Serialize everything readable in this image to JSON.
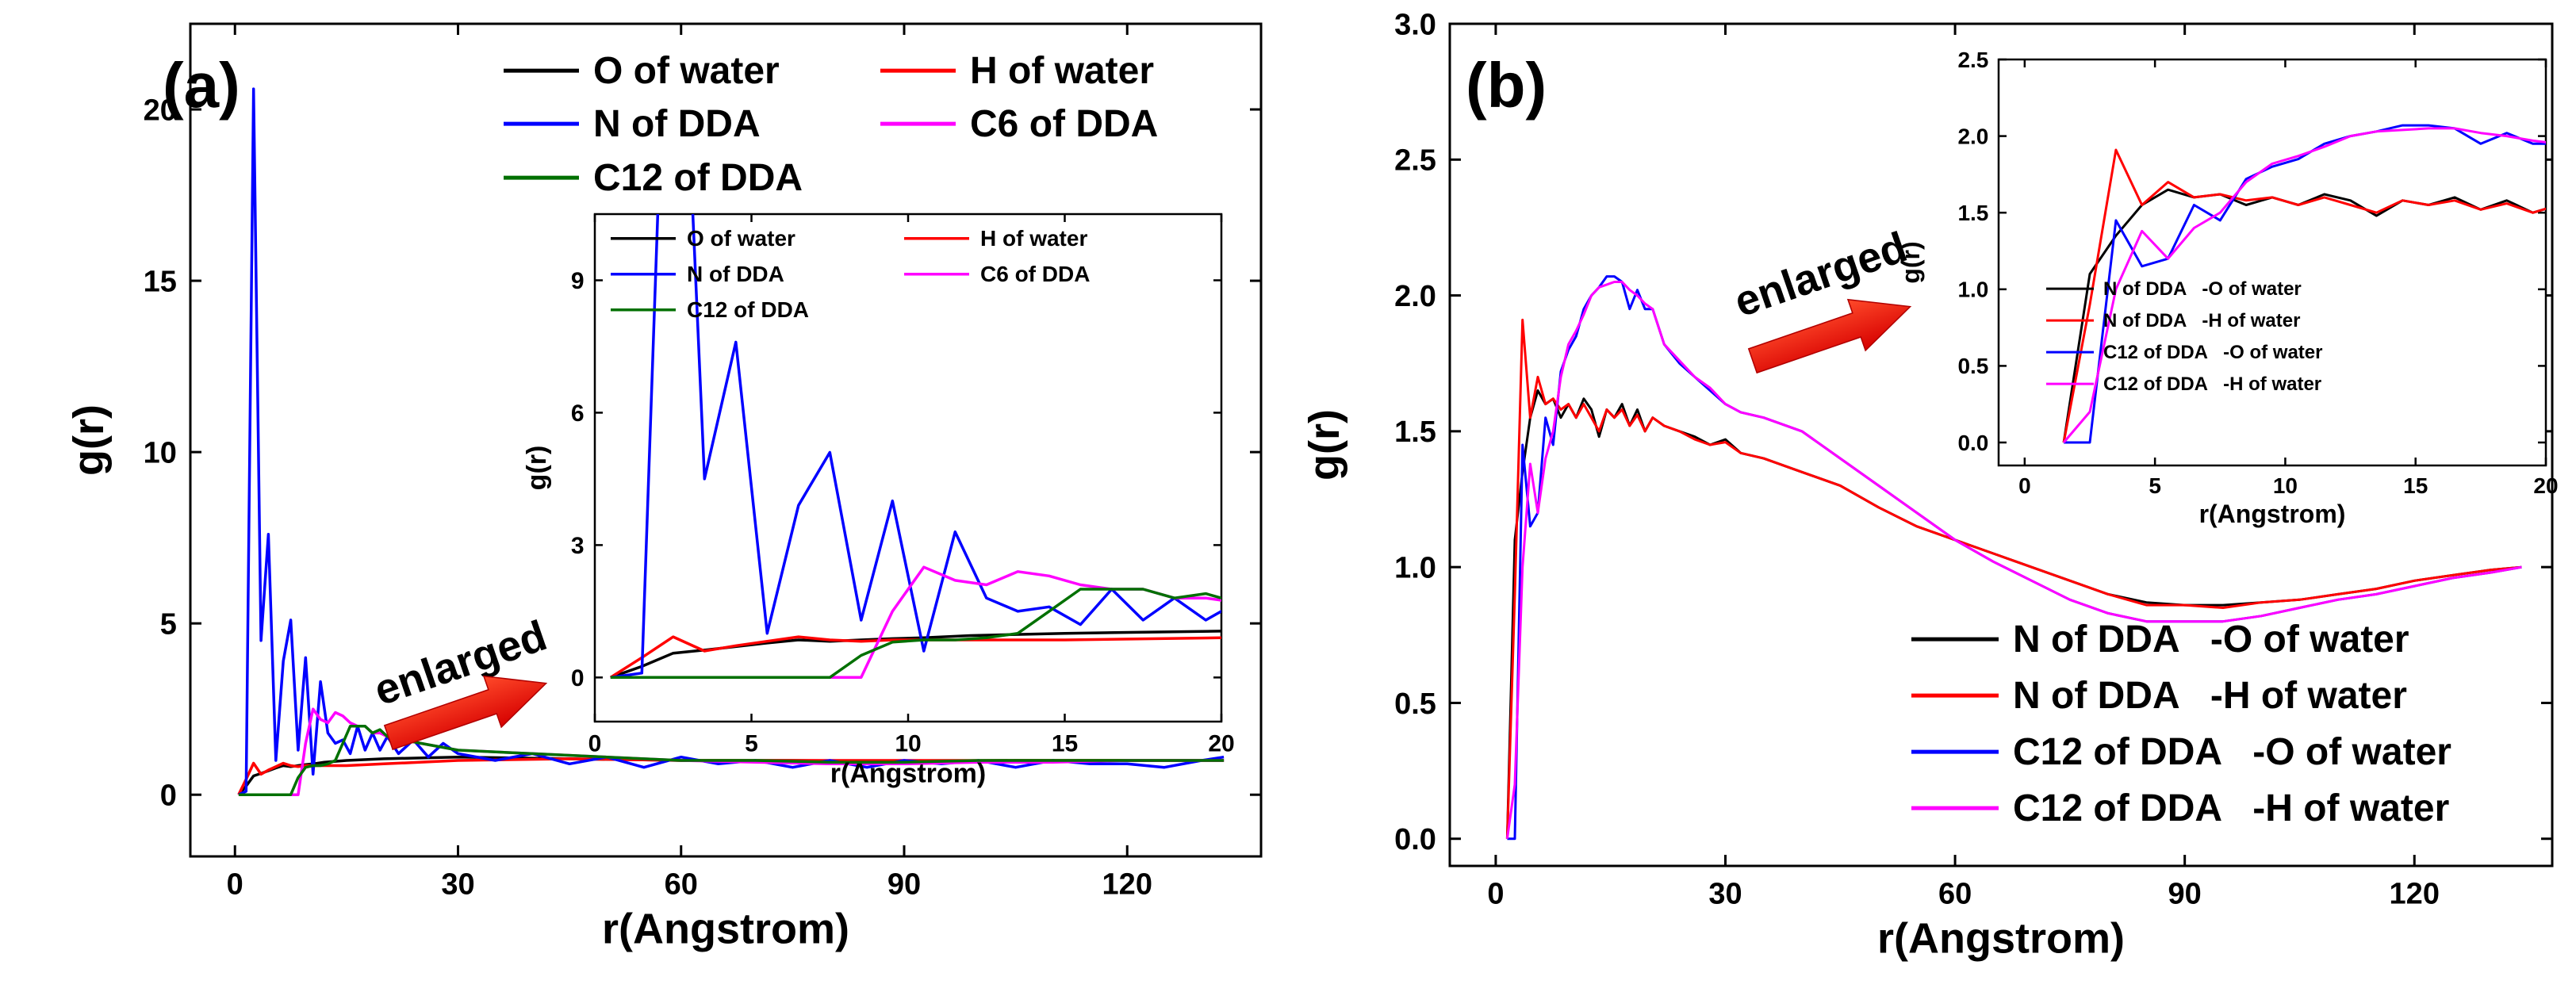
{
  "chart_data": [
    {
      "panel": "(a)",
      "type": "line",
      "title": "",
      "xlabel": "r(Angstrom)",
      "ylabel": "g(r)",
      "xlim": [
        -6,
        138
      ],
      "ylim": [
        -1.8,
        22.5
      ],
      "xticks": [
        0,
        30,
        60,
        90,
        120
      ],
      "yticks": [
        0,
        5,
        10,
        15,
        20
      ],
      "annotation": "enlarged",
      "series": [
        {
          "name": "O of water",
          "color": "#000000",
          "x": [
            0.5,
            1.5,
            2.5,
            3.5,
            4.5,
            5.5,
            6.5,
            7.5,
            8.5,
            9.5,
            10.5,
            12,
            15,
            20,
            30,
            45,
            60,
            75,
            90,
            105,
            120,
            133
          ],
          "y": [
            0,
            0.25,
            0.55,
            0.62,
            0.7,
            0.78,
            0.85,
            0.82,
            0.85,
            0.88,
            0.9,
            0.95,
            1.0,
            1.05,
            1.1,
            1.05,
            1.0,
            1.0,
            0.98,
            1.0,
            1.0,
            1.0
          ]
        },
        {
          "name": "H of water",
          "color": "#ff0000",
          "x": [
            0.5,
            1.5,
            2.5,
            3.5,
            4.5,
            5.5,
            6.5,
            7.5,
            8.5,
            9.5,
            10.5,
            12,
            15,
            20,
            30,
            45,
            60,
            75,
            90,
            105,
            120,
            133
          ],
          "y": [
            0,
            0.45,
            0.92,
            0.6,
            0.72,
            0.82,
            0.92,
            0.85,
            0.82,
            0.85,
            0.85,
            0.85,
            0.85,
            0.9,
            1.0,
            1.05,
            1.0,
            1.0,
            1.0,
            1.0,
            1.0,
            1.0
          ]
        },
        {
          "name": "N of DDA",
          "color": "#0000ff",
          "x": [
            0.5,
            1.5,
            2.5,
            3.5,
            4.5,
            5.5,
            6.5,
            7.5,
            8.5,
            9.5,
            10.5,
            11.5,
            12.5,
            13.5,
            14.5,
            15.5,
            16.5,
            17.5,
            18.5,
            19.5,
            20.5,
            22,
            24,
            26,
            28,
            30,
            35,
            40,
            45,
            50,
            55,
            60,
            65,
            70,
            75,
            80,
            85,
            90,
            95,
            100,
            105,
            110,
            115,
            120,
            125,
            130,
            133
          ],
          "y": [
            0,
            0.1,
            20.6,
            4.5,
            7.6,
            1.0,
            3.9,
            5.1,
            1.3,
            4.0,
            0.6,
            3.3,
            1.8,
            1.5,
            1.6,
            1.2,
            2.0,
            1.3,
            1.8,
            1.3,
            1.7,
            1.2,
            1.6,
            1.1,
            1.5,
            1.2,
            1.0,
            1.2,
            0.9,
            1.1,
            0.8,
            1.1,
            0.9,
            1.0,
            0.8,
            1.0,
            0.8,
            1.0,
            0.9,
            1.0,
            0.8,
            1.0,
            0.9,
            0.9,
            0.8,
            1.0,
            1.1
          ]
        },
        {
          "name": "C6 of DDA",
          "color": "#ff00ff",
          "x": [
            0.5,
            5,
            8.5,
            9.5,
            10.5,
            11.5,
            12.5,
            13.5,
            14.5,
            15.5,
            16.5,
            17.5,
            18.5,
            19.5,
            20.5,
            25,
            30,
            40,
            50,
            60,
            70,
            80,
            90,
            100,
            110,
            120,
            133
          ],
          "y": [
            0,
            0,
            0,
            1.5,
            2.5,
            2.2,
            2.1,
            2.4,
            2.3,
            2.1,
            2.0,
            2.0,
            1.8,
            1.8,
            1.7,
            1.5,
            1.3,
            1.2,
            1.1,
            1.0,
            0.95,
            0.9,
            0.9,
            0.95,
            0.95,
            1.0,
            1.0
          ]
        },
        {
          "name": "C12 of DDA",
          "color": "#007000",
          "x": [
            0.5,
            2,
            4,
            6,
            7.5,
            8.5,
            9.5,
            10.5,
            11.5,
            12.5,
            13.5,
            14.5,
            15.5,
            16.5,
            17.5,
            18.5,
            19.5,
            20.5,
            25,
            30,
            40,
            50,
            60,
            70,
            80,
            90,
            100,
            110,
            120,
            133
          ],
          "y": [
            0,
            0,
            0,
            0,
            0,
            0.5,
            0.8,
            0.85,
            0.85,
            0.9,
            1.0,
            1.5,
            2.0,
            2.0,
            2.0,
            1.8,
            1.9,
            1.7,
            1.5,
            1.3,
            1.2,
            1.1,
            1.0,
            1.0,
            0.95,
            0.95,
            1.0,
            1.0,
            1.0,
            1.0
          ]
        }
      ],
      "inset": {
        "xlabel": "r(Angstrom)",
        "ylabel": "g(r)",
        "xlim": [
          0,
          20
        ],
        "ylim": [
          -1,
          10.5
        ],
        "xticks": [
          0,
          5,
          10,
          15,
          20
        ],
        "yticks": [
          0,
          3,
          6,
          9
        ]
      }
    },
    {
      "panel": "(b)",
      "type": "line",
      "title": "",
      "xlabel": "r(Angstrom)",
      "ylabel": "g(r)",
      "xlim": [
        -6,
        138
      ],
      "ylim": [
        -0.1,
        3.0
      ],
      "xticks": [
        0,
        30,
        60,
        90,
        120
      ],
      "yticks": [
        0.0,
        0.5,
        1.0,
        1.5,
        2.0,
        2.5,
        3.0
      ],
      "annotation": "enlarged",
      "series": [
        {
          "name": "N of DDA   -O of water",
          "color": "#000000",
          "x": [
            1.5,
            2.5,
            3.5,
            4.5,
            5.5,
            6.5,
            7.5,
            8.5,
            9.5,
            10.5,
            11.5,
            12.5,
            13.5,
            14.5,
            15.5,
            16.5,
            17.5,
            18.5,
            19.5,
            20.5,
            22,
            24,
            26,
            28,
            30,
            32,
            35,
            40,
            45,
            50,
            55,
            60,
            65,
            70,
            75,
            80,
            85,
            90,
            95,
            100,
            105,
            110,
            115,
            120,
            125,
            130,
            134
          ],
          "y": [
            0,
            1.1,
            1.35,
            1.55,
            1.65,
            1.6,
            1.62,
            1.55,
            1.6,
            1.55,
            1.62,
            1.58,
            1.48,
            1.58,
            1.55,
            1.6,
            1.52,
            1.58,
            1.5,
            1.55,
            1.52,
            1.5,
            1.48,
            1.45,
            1.47,
            1.42,
            1.4,
            1.35,
            1.3,
            1.22,
            1.15,
            1.1,
            1.05,
            1.0,
            0.95,
            0.9,
            0.87,
            0.86,
            0.86,
            0.87,
            0.88,
            0.9,
            0.92,
            0.95,
            0.97,
            0.99,
            1.0
          ]
        },
        {
          "name": "N of DDA   -H of water",
          "color": "#ff0000",
          "x": [
            1.5,
            2.5,
            3.5,
            4.5,
            5.5,
            6.5,
            7.5,
            8.5,
            9.5,
            10.5,
            11.5,
            12.5,
            13.5,
            14.5,
            15.5,
            16.5,
            17.5,
            18.5,
            19.5,
            20.5,
            22,
            24,
            26,
            28,
            30,
            32,
            35,
            40,
            45,
            50,
            55,
            60,
            65,
            70,
            75,
            80,
            85,
            90,
            95,
            100,
            105,
            110,
            115,
            120,
            125,
            130,
            134
          ],
          "y": [
            0,
            0.9,
            1.91,
            1.55,
            1.7,
            1.6,
            1.62,
            1.58,
            1.6,
            1.55,
            1.6,
            1.55,
            1.5,
            1.58,
            1.55,
            1.58,
            1.52,
            1.56,
            1.5,
            1.55,
            1.52,
            1.5,
            1.47,
            1.45,
            1.46,
            1.42,
            1.4,
            1.35,
            1.3,
            1.22,
            1.15,
            1.1,
            1.05,
            1.0,
            0.95,
            0.9,
            0.86,
            0.86,
            0.85,
            0.87,
            0.88,
            0.9,
            0.92,
            0.95,
            0.97,
            0.99,
            1.0
          ]
        },
        {
          "name": "C12 of DDA   -O of water",
          "color": "#0000ff",
          "x": [
            1.5,
            2.5,
            3.5,
            4.5,
            5.5,
            6.5,
            7.5,
            8.5,
            9.5,
            10.5,
            11.5,
            12.5,
            13.5,
            14.5,
            15.5,
            16.5,
            17.5,
            18.5,
            19.5,
            20.5,
            22,
            24,
            26,
            28,
            30,
            32,
            35,
            40,
            45,
            50,
            55,
            60,
            65,
            70,
            75,
            80,
            85,
            90,
            95,
            100,
            105,
            110,
            115,
            120,
            125,
            130,
            134
          ],
          "y": [
            0,
            0,
            1.45,
            1.15,
            1.2,
            1.55,
            1.45,
            1.72,
            1.8,
            1.85,
            1.95,
            2.0,
            2.03,
            2.07,
            2.07,
            2.05,
            1.95,
            2.02,
            1.95,
            1.95,
            1.82,
            1.75,
            1.7,
            1.65,
            1.6,
            1.57,
            1.55,
            1.5,
            1.4,
            1.3,
            1.2,
            1.1,
            1.02,
            0.95,
            0.88,
            0.83,
            0.8,
            0.8,
            0.8,
            0.82,
            0.85,
            0.88,
            0.9,
            0.93,
            0.96,
            0.98,
            1.0
          ]
        },
        {
          "name": "C12 of DDA   -H of water",
          "color": "#ff00ff",
          "x": [
            1.5,
            2.5,
            3.5,
            4.5,
            5.5,
            6.5,
            7.5,
            8.5,
            9.5,
            10.5,
            11.5,
            12.5,
            13.5,
            14.5,
            15.5,
            16.5,
            17.5,
            18.5,
            19.5,
            20.5,
            22,
            24,
            26,
            28,
            30,
            32,
            35,
            40,
            45,
            50,
            55,
            60,
            65,
            70,
            75,
            80,
            85,
            90,
            95,
            100,
            105,
            110,
            115,
            120,
            125,
            130,
            134
          ],
          "y": [
            0,
            0.2,
            1.0,
            1.38,
            1.2,
            1.4,
            1.5,
            1.7,
            1.82,
            1.87,
            1.93,
            2.0,
            2.03,
            2.04,
            2.05,
            2.05,
            2.02,
            2.0,
            1.97,
            1.95,
            1.82,
            1.76,
            1.7,
            1.66,
            1.6,
            1.57,
            1.55,
            1.5,
            1.4,
            1.3,
            1.2,
            1.1,
            1.02,
            0.95,
            0.88,
            0.83,
            0.8,
            0.8,
            0.8,
            0.82,
            0.85,
            0.88,
            0.9,
            0.93,
            0.96,
            0.98,
            1.0
          ]
        }
      ],
      "inset": {
        "xlabel": "r(Angstrom)",
        "ylabel": "g(r)",
        "xlim": [
          -1,
          20
        ],
        "ylim": [
          -0.15,
          2.5
        ],
        "xticks": [
          0,
          5,
          10,
          15,
          20
        ],
        "yticks": [
          0.0,
          0.5,
          1.0,
          1.5,
          2.0,
          2.5
        ]
      }
    }
  ]
}
